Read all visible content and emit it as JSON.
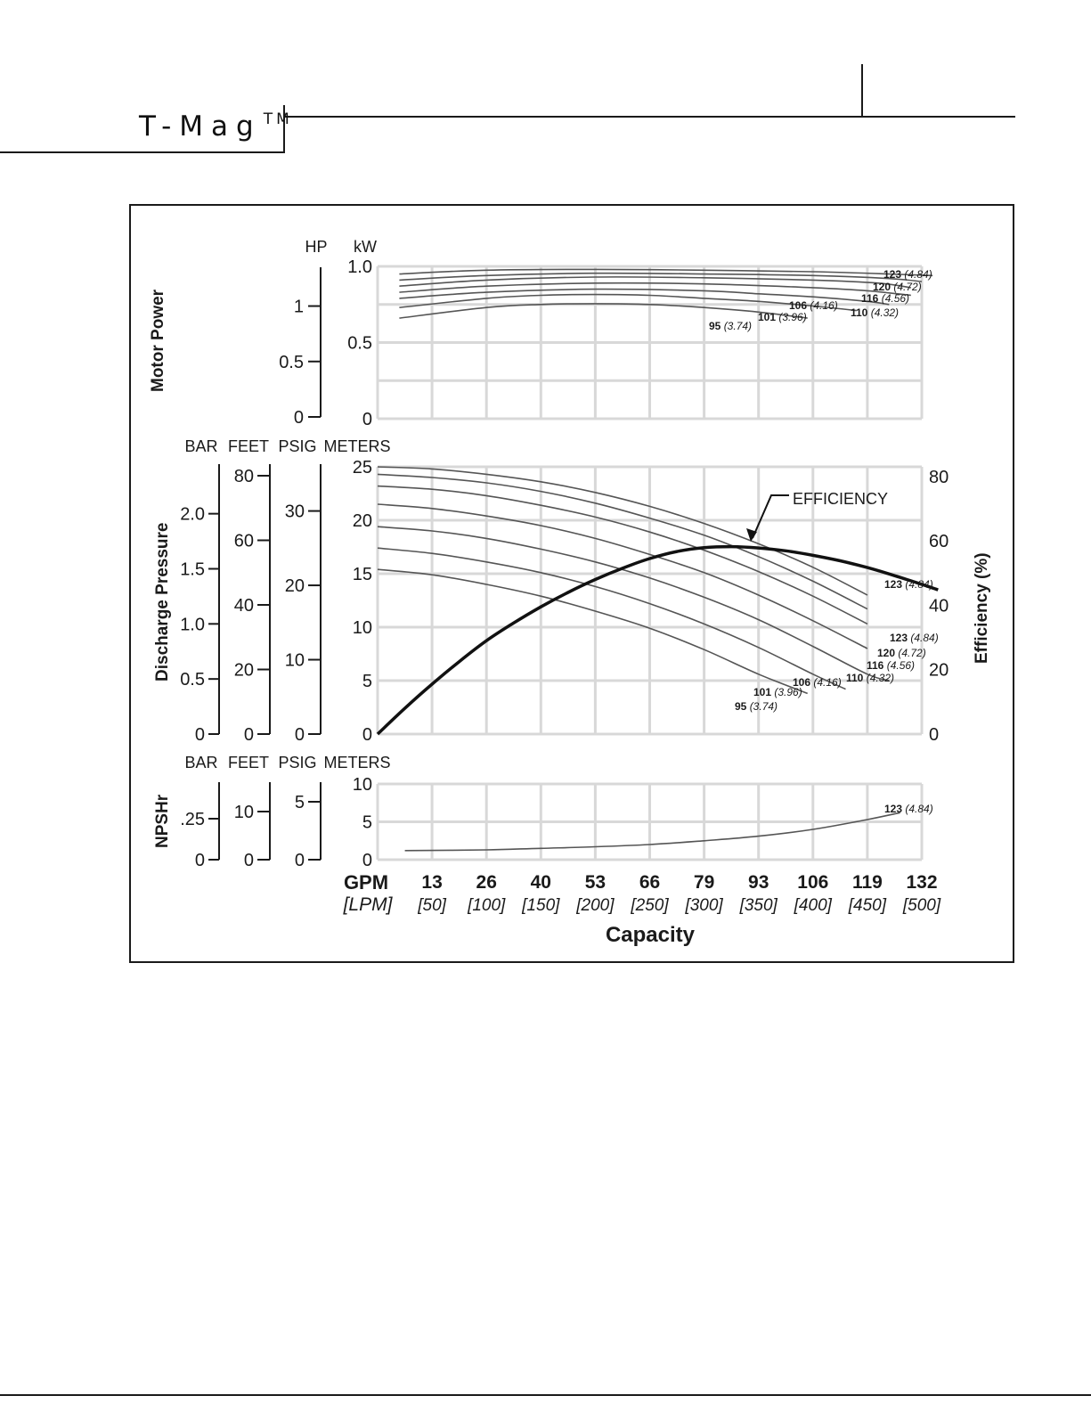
{
  "header": {
    "title": "T-Mag",
    "trademark": "TM"
  },
  "chart_data": {
    "type": "line",
    "x_axis": {
      "title": "Capacity",
      "unit_primary": "GPM",
      "unit_secondary": "[LPM]",
      "gpm_ticks": [
        "13",
        "26",
        "40",
        "53",
        "66",
        "79",
        "93",
        "106",
        "119",
        "132"
      ],
      "lpm_ticks": [
        "[50]",
        "[100]",
        "[150]",
        "[200]",
        "[250]",
        "[300]",
        "[350]",
        "[400]",
        "[450]",
        "[500]"
      ],
      "range_lpm": [
        0,
        500
      ]
    },
    "motor_power": {
      "title": "Motor Power",
      "units": [
        "HP",
        "kW"
      ],
      "hp_ticks": [
        "0",
        "0.5",
        "1"
      ],
      "kw_ticks": [
        "0",
        "0.5",
        "1.0"
      ],
      "ylim_kw": [
        0,
        1.0
      ],
      "series": [
        {
          "name": "95",
          "label": "(3.74)",
          "lpm": [
            20,
            100,
            150,
            200,
            250,
            300,
            350,
            395
          ],
          "kw": [
            0.66,
            0.73,
            0.75,
            0.755,
            0.75,
            0.73,
            0.7,
            0.66
          ]
        },
        {
          "name": "101",
          "label": "(3.96)",
          "lpm": [
            20,
            100,
            150,
            200,
            250,
            300,
            350,
            400,
            440
          ],
          "kw": [
            0.73,
            0.79,
            0.81,
            0.815,
            0.81,
            0.79,
            0.77,
            0.74,
            0.71
          ]
        },
        {
          "name": "106",
          "label": "(4.16)",
          "lpm": [
            20,
            100,
            200,
            300,
            350,
            400,
            450,
            470
          ],
          "kw": [
            0.79,
            0.83,
            0.85,
            0.84,
            0.82,
            0.8,
            0.77,
            0.75
          ]
        },
        {
          "name": "110",
          "label": "(4.32)",
          "lpm": [
            20,
            100,
            200,
            300,
            400,
            450,
            490
          ],
          "kw": [
            0.83,
            0.87,
            0.89,
            0.885,
            0.86,
            0.84,
            0.81
          ]
        },
        {
          "name": "116",
          "label": "(4.56)",
          "lpm": [
            20,
            100,
            200,
            300,
            400,
            460,
            490
          ],
          "kw": [
            0.87,
            0.91,
            0.93,
            0.925,
            0.91,
            0.89,
            0.86
          ]
        },
        {
          "name": "120",
          "label": "(4.72)",
          "lpm": [
            20,
            100,
            200,
            300,
            400,
            470,
            500
          ],
          "kw": [
            0.91,
            0.94,
            0.955,
            0.95,
            0.94,
            0.92,
            0.9
          ]
        },
        {
          "name": "123",
          "label": "(4.84)",
          "lpm": [
            20,
            100,
            200,
            300,
            400,
            470,
            510
          ],
          "kw": [
            0.95,
            0.975,
            0.98,
            0.975,
            0.965,
            0.95,
            0.94
          ]
        }
      ]
    },
    "discharge_pressure": {
      "title": "Discharge Pressure",
      "units": [
        "BAR",
        "FEET",
        "PSIG",
        "METERS"
      ],
      "bar_ticks": [
        "0",
        "0.5",
        "1.0",
        "1.5",
        "2.0"
      ],
      "feet_ticks": [
        "0",
        "20",
        "40",
        "60",
        "80"
      ],
      "psig_ticks": [
        "0",
        "10",
        "20",
        "30"
      ],
      "meters_ticks": [
        "0",
        "5",
        "10",
        "15",
        "20",
        "25"
      ],
      "ylim_meters": [
        0,
        25
      ],
      "series": [
        {
          "name": "95",
          "label": "(3.74)",
          "lpm": [
            0,
            50,
            100,
            150,
            200,
            250,
            300,
            350,
            395
          ],
          "meters": [
            15.4,
            14.9,
            14.0,
            12.9,
            11.5,
            9.9,
            7.9,
            5.6,
            3.8
          ]
        },
        {
          "name": "101",
          "label": "(3.96)",
          "lpm": [
            0,
            50,
            100,
            150,
            200,
            250,
            300,
            350,
            400,
            430
          ],
          "meters": [
            17.4,
            16.9,
            16.1,
            15.1,
            13.8,
            12.2,
            10.3,
            8.1,
            5.6,
            4.2
          ]
        },
        {
          "name": "106",
          "label": "(4.16)",
          "lpm": [
            0,
            50,
            100,
            150,
            200,
            250,
            300,
            350,
            400,
            450,
            470
          ],
          "meters": [
            19.4,
            19.0,
            18.3,
            17.3,
            16.1,
            14.6,
            12.8,
            10.7,
            8.2,
            5.6,
            5.0
          ]
        },
        {
          "name": "110",
          "label": "(4.32)",
          "lpm": [
            0,
            50,
            100,
            150,
            200,
            250,
            300,
            350,
            400,
            450,
            490
          ],
          "meters": [
            21.5,
            21.1,
            20.4,
            19.5,
            18.3,
            16.8,
            15.1,
            13.0,
            10.6,
            8.0,
            5.8
          ]
        },
        {
          "name": "116",
          "label": "(4.56)",
          "lpm": [
            0,
            50,
            100,
            150,
            200,
            250,
            300,
            350,
            400,
            450,
            500
          ],
          "meters": [
            23.2,
            22.9,
            22.3,
            21.4,
            20.3,
            18.9,
            17.2,
            15.2,
            12.9,
            10.3,
            7.2
          ]
        },
        {
          "name": "120",
          "label": "(4.72)",
          "lpm": [
            0,
            50,
            100,
            150,
            200,
            250,
            300,
            350,
            400,
            450,
            510
          ],
          "meters": [
            24.3,
            24.0,
            23.5,
            22.7,
            21.6,
            20.2,
            18.6,
            16.6,
            14.3,
            11.7,
            8.3
          ]
        },
        {
          "name": "123",
          "label": "(4.84)",
          "lpm": [
            0,
            50,
            100,
            150,
            200,
            250,
            300,
            350,
            400,
            450,
            520
          ],
          "meters": [
            25.0,
            24.8,
            24.3,
            23.6,
            22.6,
            21.3,
            19.7,
            17.8,
            15.6,
            13.0,
            9.0
          ]
        }
      ],
      "efficiency": {
        "name": "EFFICIENCY",
        "series_label": "123",
        "series_label_value": "(4.84)",
        "axis_title": "Efficiency (%)",
        "ticks": [
          "0",
          "20",
          "40",
          "60",
          "80"
        ],
        "ylim_percent": [
          0,
          80
        ],
        "lpm": [
          0,
          25,
          50,
          75,
          100,
          125,
          150,
          175,
          200,
          225,
          250,
          275,
          300,
          325,
          350,
          375,
          400,
          425,
          450,
          475,
          500,
          515
        ],
        "percent": [
          0,
          8,
          15.5,
          22.5,
          29,
          34.5,
          39.5,
          44,
          48,
          51.5,
          54.5,
          56.7,
          57.9,
          58.2,
          57.8,
          56.9,
          55.5,
          53.8,
          51.7,
          49.2,
          46.5,
          44.8
        ]
      }
    },
    "npshr": {
      "title": "NPSHr",
      "units": [
        "BAR",
        "FEET",
        "PSIG",
        "METERS"
      ],
      "bar_ticks": [
        "0",
        ".25"
      ],
      "feet_ticks": [
        "0",
        "10"
      ],
      "psig_ticks": [
        "0",
        "5"
      ],
      "meters_ticks": [
        "0",
        "5",
        "10"
      ],
      "ylim_meters": [
        0,
        10
      ],
      "series": [
        {
          "name": "123",
          "label": "(4.84)",
          "lpm": [
            25,
            100,
            150,
            200,
            250,
            300,
            350,
            400,
            450,
            480
          ],
          "meters": [
            1.2,
            1.3,
            1.5,
            1.7,
            2.0,
            2.5,
            3.1,
            4.0,
            5.3,
            6.2
          ]
        }
      ]
    }
  }
}
